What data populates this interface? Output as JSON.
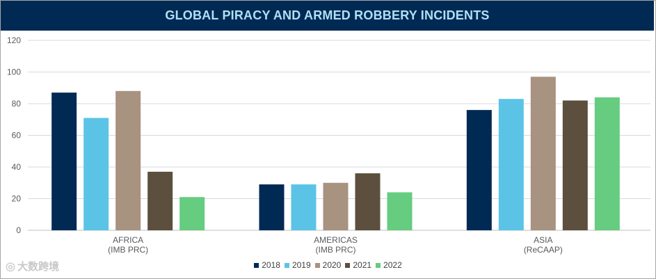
{
  "chart_data": {
    "type": "bar",
    "title": "GLOBAL PIRACY AND ARMED ROBBERY INCIDENTS",
    "categories": [
      [
        "AFRICA",
        "(IMB PRC)"
      ],
      [
        "AMERICAS",
        "(IMB PRC)"
      ],
      [
        "ASIA",
        "(ReCAAP)"
      ]
    ],
    "series": [
      {
        "name": "2018",
        "color": "#002a54",
        "values": [
          87,
          29,
          76
        ]
      },
      {
        "name": "2019",
        "color": "#5bc4e6",
        "values": [
          71,
          29,
          83
        ]
      },
      {
        "name": "2020",
        "color": "#a89280",
        "values": [
          88,
          30,
          97
        ]
      },
      {
        "name": "2021",
        "color": "#5c4f3e",
        "values": [
          37,
          36,
          82
        ]
      },
      {
        "name": "2022",
        "color": "#66cc80",
        "values": [
          21,
          24,
          84
        ]
      }
    ],
    "ylim": [
      0,
      120
    ],
    "yticks": [
      0,
      20,
      40,
      60,
      80,
      100,
      120
    ],
    "grid": true,
    "legend": "bottom-center"
  },
  "watermark": {
    "text": "大数跨境",
    "icon": "camera-logo-icon"
  }
}
